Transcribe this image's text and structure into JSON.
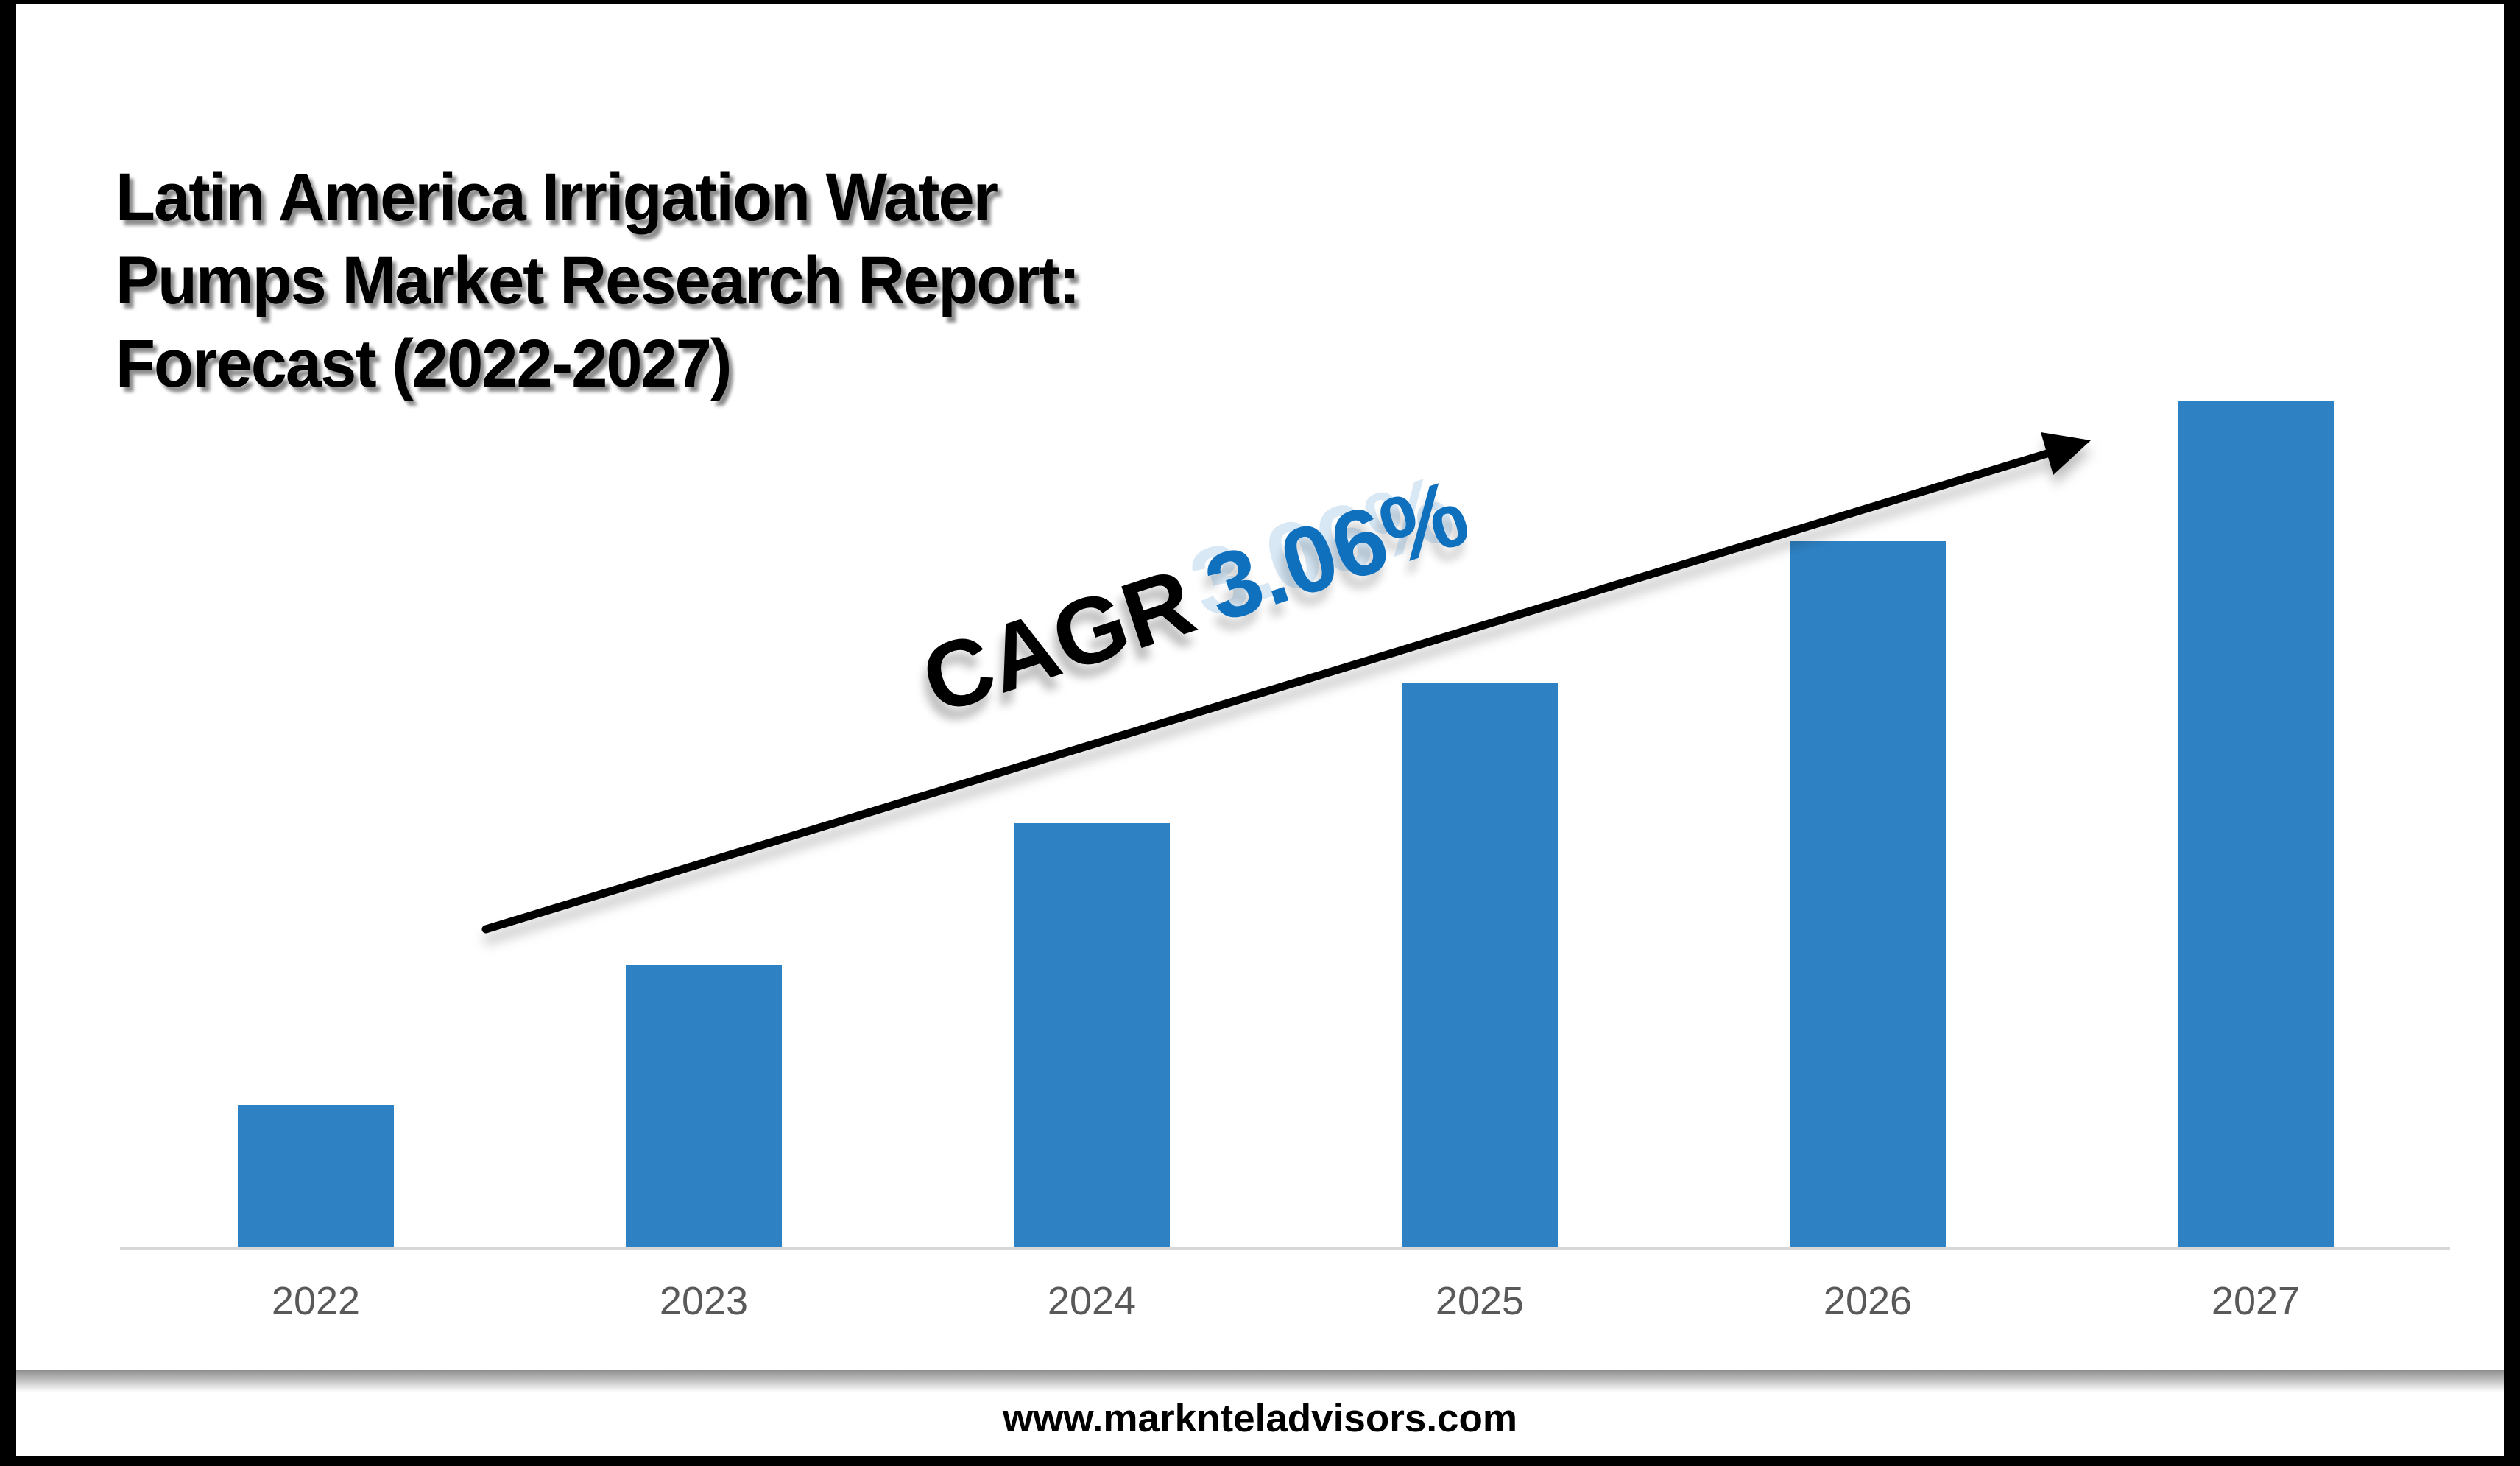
{
  "page": {
    "background": "#ffffff",
    "frame_color": "#000000"
  },
  "title": {
    "full": "Latin America Irrigation Water Pumps Market Research Report: Forecast (2022-2027)",
    "lines": [
      "Latin America Irrigation Water",
      "Pumps Market Research Report:",
      "Forecast (2022-2027)"
    ],
    "color": "#000000"
  },
  "annotation": {
    "label": "CAGR",
    "value": "3.06%",
    "label_color": "#000000",
    "value_color": "#0F70BE",
    "rotation_deg": -18,
    "trend_arrow_color": "#000000"
  },
  "chart_data": {
    "type": "bar",
    "title": "Latin America Irrigation Water Pumps Market Research Report: Forecast (2022-2027)",
    "categories": [
      "2022",
      "2023",
      "2024",
      "2025",
      "2026",
      "2027"
    ],
    "values": [
      1,
      2,
      3,
      4,
      5,
      6
    ],
    "value_scale": "relative bar heights (no y-axis labels shown in figure)",
    "xlabel": "",
    "ylabel": "",
    "ylim": [
      0,
      6.5
    ],
    "grid": false,
    "legend": false,
    "bar_color": "#2E82C4",
    "axis_line_color": "#D8D8D8",
    "tick_label_color": "#595959",
    "annotation": "CAGR 3.06%"
  },
  "footer": {
    "url": "www.marknteladvisors.com"
  }
}
